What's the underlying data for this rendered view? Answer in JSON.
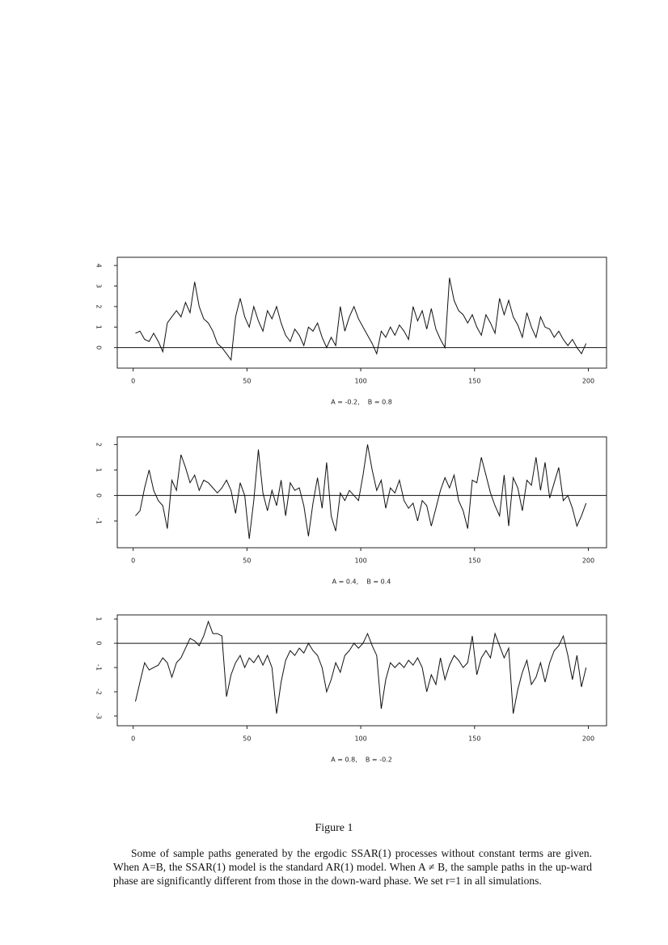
{
  "chart_data": [
    {
      "type": "line",
      "xlabel": "A = -0.2,    B = 0.8",
      "color": "#111",
      "hline": 0,
      "xlim": [
        -7,
        208
      ],
      "ylim": [
        -1,
        4.4
      ],
      "xticks": [
        0,
        50,
        100,
        150,
        200
      ],
      "yticks": [
        0,
        1,
        2,
        3,
        4
      ],
      "x": [
        1,
        3,
        5,
        7,
        9,
        11,
        13,
        15,
        17,
        19,
        21,
        23,
        25,
        27,
        29,
        31,
        33,
        35,
        37,
        39,
        41,
        43,
        45,
        47,
        49,
        51,
        53,
        55,
        57,
        59,
        61,
        63,
        65,
        67,
        69,
        71,
        73,
        75,
        77,
        79,
        81,
        83,
        85,
        87,
        89,
        91,
        93,
        95,
        97,
        99,
        101,
        103,
        105,
        107,
        109,
        111,
        113,
        115,
        117,
        119,
        121,
        123,
        125,
        127,
        129,
        131,
        133,
        135,
        137,
        139,
        141,
        143,
        145,
        147,
        149,
        151,
        153,
        155,
        157,
        159,
        161,
        163,
        165,
        167,
        169,
        171,
        173,
        175,
        177,
        179,
        181,
        183,
        185,
        187,
        189,
        191,
        193,
        195,
        197,
        199
      ],
      "values": [
        0.7,
        0.8,
        0.4,
        0.3,
        0.7,
        0.3,
        -0.2,
        1.2,
        1.5,
        1.8,
        1.5,
        2.2,
        1.7,
        3.2,
        2.0,
        1.4,
        1.2,
        0.8,
        0.2,
        0.0,
        -0.3,
        -0.6,
        1.5,
        2.4,
        1.5,
        1.0,
        2.0,
        1.3,
        0.8,
        1.8,
        1.4,
        2.0,
        1.2,
        0.6,
        0.3,
        0.9,
        0.6,
        0.1,
        1.0,
        0.8,
        1.2,
        0.5,
        0.0,
        0.5,
        0.1,
        2.0,
        0.8,
        1.5,
        2.0,
        1.4,
        1.0,
        0.6,
        0.2,
        -0.3,
        0.8,
        0.5,
        1.0,
        0.6,
        1.1,
        0.8,
        0.4,
        2.0,
        1.3,
        1.8,
        0.9,
        1.9,
        0.9,
        0.4,
        0.0,
        3.4,
        2.3,
        1.8,
        1.6,
        1.2,
        1.6,
        1.0,
        0.6,
        1.6,
        1.2,
        0.7,
        2.4,
        1.6,
        2.3,
        1.5,
        1.1,
        0.5,
        1.7,
        1.0,
        0.5,
        1.5,
        1.0,
        0.9,
        0.5,
        0.8,
        0.4,
        0.1,
        0.4,
        0.0,
        -0.3,
        0.2
      ]
    },
    {
      "type": "line",
      "xlabel": "A = 0.4,    B = 0.4",
      "color": "#111",
      "hline": 0,
      "xlim": [
        -7,
        208
      ],
      "ylim": [
        -2.05,
        2.3
      ],
      "xticks": [
        0,
        50,
        100,
        150,
        200
      ],
      "yticks": [
        -1,
        0,
        1,
        2
      ],
      "x": [
        1,
        3,
        5,
        7,
        9,
        11,
        13,
        15,
        17,
        19,
        21,
        23,
        25,
        27,
        29,
        31,
        33,
        35,
        37,
        39,
        41,
        43,
        45,
        47,
        49,
        51,
        53,
        55,
        57,
        59,
        61,
        63,
        65,
        67,
        69,
        71,
        73,
        75,
        77,
        79,
        81,
        83,
        85,
        87,
        89,
        91,
        93,
        95,
        97,
        99,
        101,
        103,
        105,
        107,
        109,
        111,
        113,
        115,
        117,
        119,
        121,
        123,
        125,
        127,
        129,
        131,
        133,
        135,
        137,
        139,
        141,
        143,
        145,
        147,
        149,
        151,
        153,
        155,
        157,
        159,
        161,
        163,
        165,
        167,
        169,
        171,
        173,
        175,
        177,
        179,
        181,
        183,
        185,
        187,
        189,
        191,
        193,
        195,
        197,
        199
      ],
      "values": [
        -0.8,
        -0.6,
        0.3,
        1.0,
        0.2,
        -0.2,
        -0.4,
        -1.3,
        0.6,
        0.2,
        1.6,
        1.1,
        0.5,
        0.8,
        0.2,
        0.6,
        0.5,
        0.3,
        0.1,
        0.3,
        0.6,
        0.2,
        -0.7,
        0.5,
        0.0,
        -1.7,
        -0.2,
        1.8,
        0.1,
        -0.6,
        0.2,
        -0.4,
        0.6,
        -0.8,
        0.5,
        0.2,
        0.3,
        -0.4,
        -1.6,
        -0.3,
        0.7,
        -0.5,
        1.3,
        -0.8,
        -1.4,
        0.1,
        -0.2,
        0.2,
        0.0,
        -0.2,
        0.8,
        2.0,
        1.0,
        0.2,
        0.6,
        -0.5,
        0.3,
        0.1,
        0.6,
        -0.2,
        -0.5,
        -0.3,
        -1.0,
        -0.2,
        -0.4,
        -1.2,
        -0.5,
        0.2,
        0.7,
        0.3,
        0.8,
        -0.2,
        -0.6,
        -1.3,
        0.6,
        0.5,
        1.5,
        0.8,
        0.1,
        -0.4,
        -0.8,
        0.8,
        -1.2,
        0.7,
        0.3,
        -0.6,
        0.6,
        0.4,
        1.5,
        0.2,
        1.3,
        -0.1,
        0.5,
        1.1,
        -0.2,
        0.0,
        -0.5,
        -1.2,
        -0.8,
        -0.3
      ]
    },
    {
      "type": "line",
      "xlabel": "A = 0.8,    B = -0.2",
      "color": "#111",
      "hline": 0,
      "xlim": [
        -7,
        208
      ],
      "ylim": [
        -3.4,
        1.17
      ],
      "xticks": [
        0,
        50,
        100,
        150,
        200
      ],
      "yticks": [
        -3,
        -2,
        -1,
        0,
        1
      ],
      "x": [
        1,
        3,
        5,
        7,
        9,
        11,
        13,
        15,
        17,
        19,
        21,
        23,
        25,
        27,
        29,
        31,
        33,
        35,
        37,
        39,
        41,
        43,
        45,
        47,
        49,
        51,
        53,
        55,
        57,
        59,
        61,
        63,
        65,
        67,
        69,
        71,
        73,
        75,
        77,
        79,
        81,
        83,
        85,
        87,
        89,
        91,
        93,
        95,
        97,
        99,
        101,
        103,
        105,
        107,
        109,
        111,
        113,
        115,
        117,
        119,
        121,
        123,
        125,
        127,
        129,
        131,
        133,
        135,
        137,
        139,
        141,
        143,
        145,
        147,
        149,
        151,
        153,
        155,
        157,
        159,
        161,
        163,
        165,
        167,
        169,
        171,
        173,
        175,
        177,
        179,
        181,
        183,
        185,
        187,
        189,
        191,
        193,
        195,
        197,
        199
      ],
      "values": [
        -2.4,
        -1.6,
        -0.8,
        -1.1,
        -1.0,
        -0.9,
        -0.6,
        -0.8,
        -1.4,
        -0.8,
        -0.6,
        -0.2,
        0.2,
        0.1,
        -0.1,
        0.3,
        0.9,
        0.4,
        0.4,
        0.3,
        -2.2,
        -1.3,
        -0.8,
        -0.5,
        -1.0,
        -0.6,
        -0.8,
        -0.5,
        -0.9,
        -0.5,
        -1.0,
        -2.9,
        -1.6,
        -0.7,
        -0.3,
        -0.5,
        -0.2,
        -0.4,
        0.0,
        -0.3,
        -0.5,
        -1.0,
        -2.0,
        -1.5,
        -0.8,
        -1.2,
        -0.5,
        -0.3,
        0.0,
        -0.2,
        0.0,
        0.4,
        -0.1,
        -0.5,
        -2.7,
        -1.5,
        -0.8,
        -1.0,
        -0.8,
        -1.0,
        -0.7,
        -0.9,
        -0.6,
        -1.0,
        -2.0,
        -1.3,
        -1.7,
        -0.6,
        -1.5,
        -0.9,
        -0.5,
        -0.7,
        -1.0,
        -0.8,
        0.3,
        -1.3,
        -0.6,
        -0.3,
        -0.6,
        0.4,
        -0.1,
        -0.6,
        -0.2,
        -2.9,
        -1.9,
        -1.2,
        -0.7,
        -1.7,
        -1.4,
        -0.8,
        -1.6,
        -0.8,
        -0.3,
        -0.1,
        0.3,
        -0.5,
        -1.5,
        -0.5,
        -1.8,
        -1.0
      ]
    }
  ],
  "caption": {
    "figure_label": "Figure 1",
    "text": "Some of sample paths generated by the ergodic SSAR(1) processes without constant terms are given.  When A=B, the SSAR(1) model is the standard AR(1) model.  When A ≠ B, the sample paths in the up-ward phase are significantly different from those in the down-ward phase.  We set r=1 in all simulations."
  }
}
